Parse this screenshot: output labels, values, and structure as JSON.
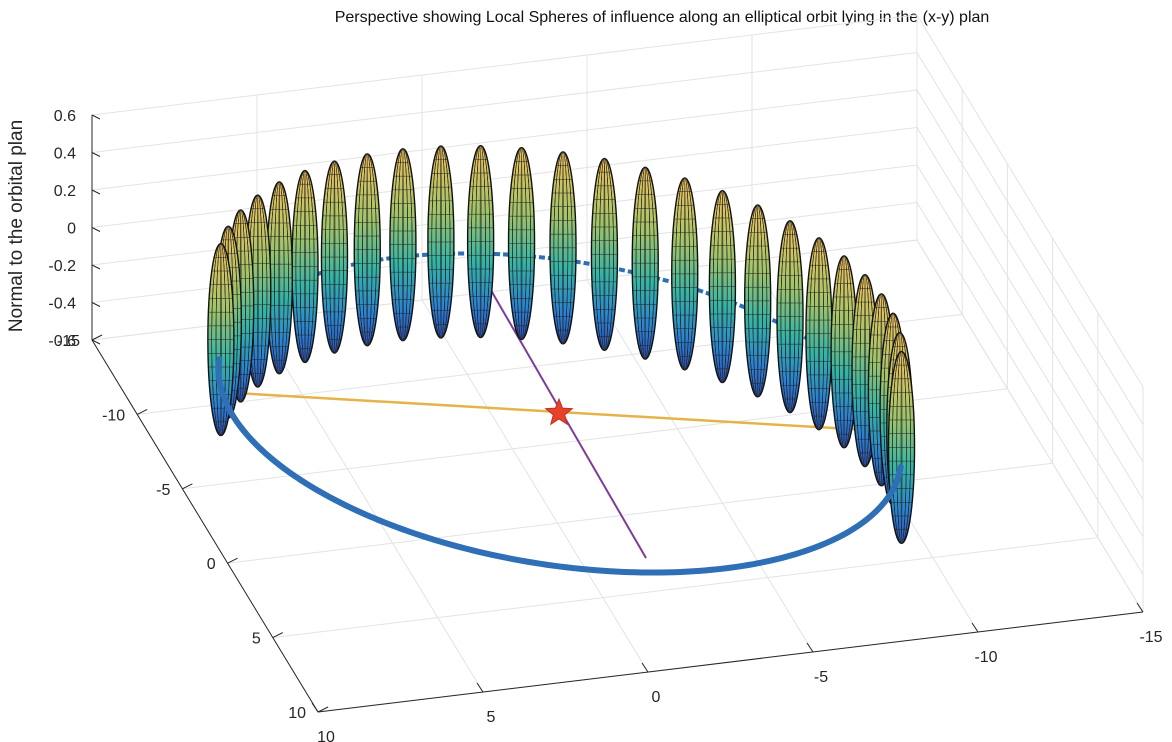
{
  "chart_data": {
    "type": "surface3d",
    "title": "Perspective showing Local Spheres of influence along an elliptical orbit lying in the (x-y) plan",
    "zlabel": "Normal to the orbital plan",
    "xlabel": "",
    "ylabel": "",
    "x_ticks": [
      "10",
      "5",
      "0",
      "-5",
      "-10",
      "-15"
    ],
    "y_ticks": [
      "-15",
      "-10",
      "-5",
      "0",
      "5",
      "10"
    ],
    "z_ticks": [
      "0.6",
      "0.4",
      "0.2",
      "0",
      "-0.2",
      "-0.4",
      "-0.6"
    ],
    "xlim": [
      -15,
      10
    ],
    "ylim": [
      -15,
      10
    ],
    "zlim": [
      -0.7,
      0.6
    ],
    "grid": true,
    "orbit": {
      "semi_major_axis": 12.5,
      "semi_minor_axis": 11,
      "color": "#2f6fb5"
    },
    "spheres_of_influence": {
      "count": 26,
      "half_height": 0.62,
      "colormap": "parula"
    },
    "central_body_marker": {
      "shape": "star",
      "color": "#e8412c",
      "x": 0,
      "y": 0
    },
    "apsides_line": {
      "color": "#e6b34a"
    },
    "semi_minor_line": {
      "color": "#7d3c98"
    }
  }
}
